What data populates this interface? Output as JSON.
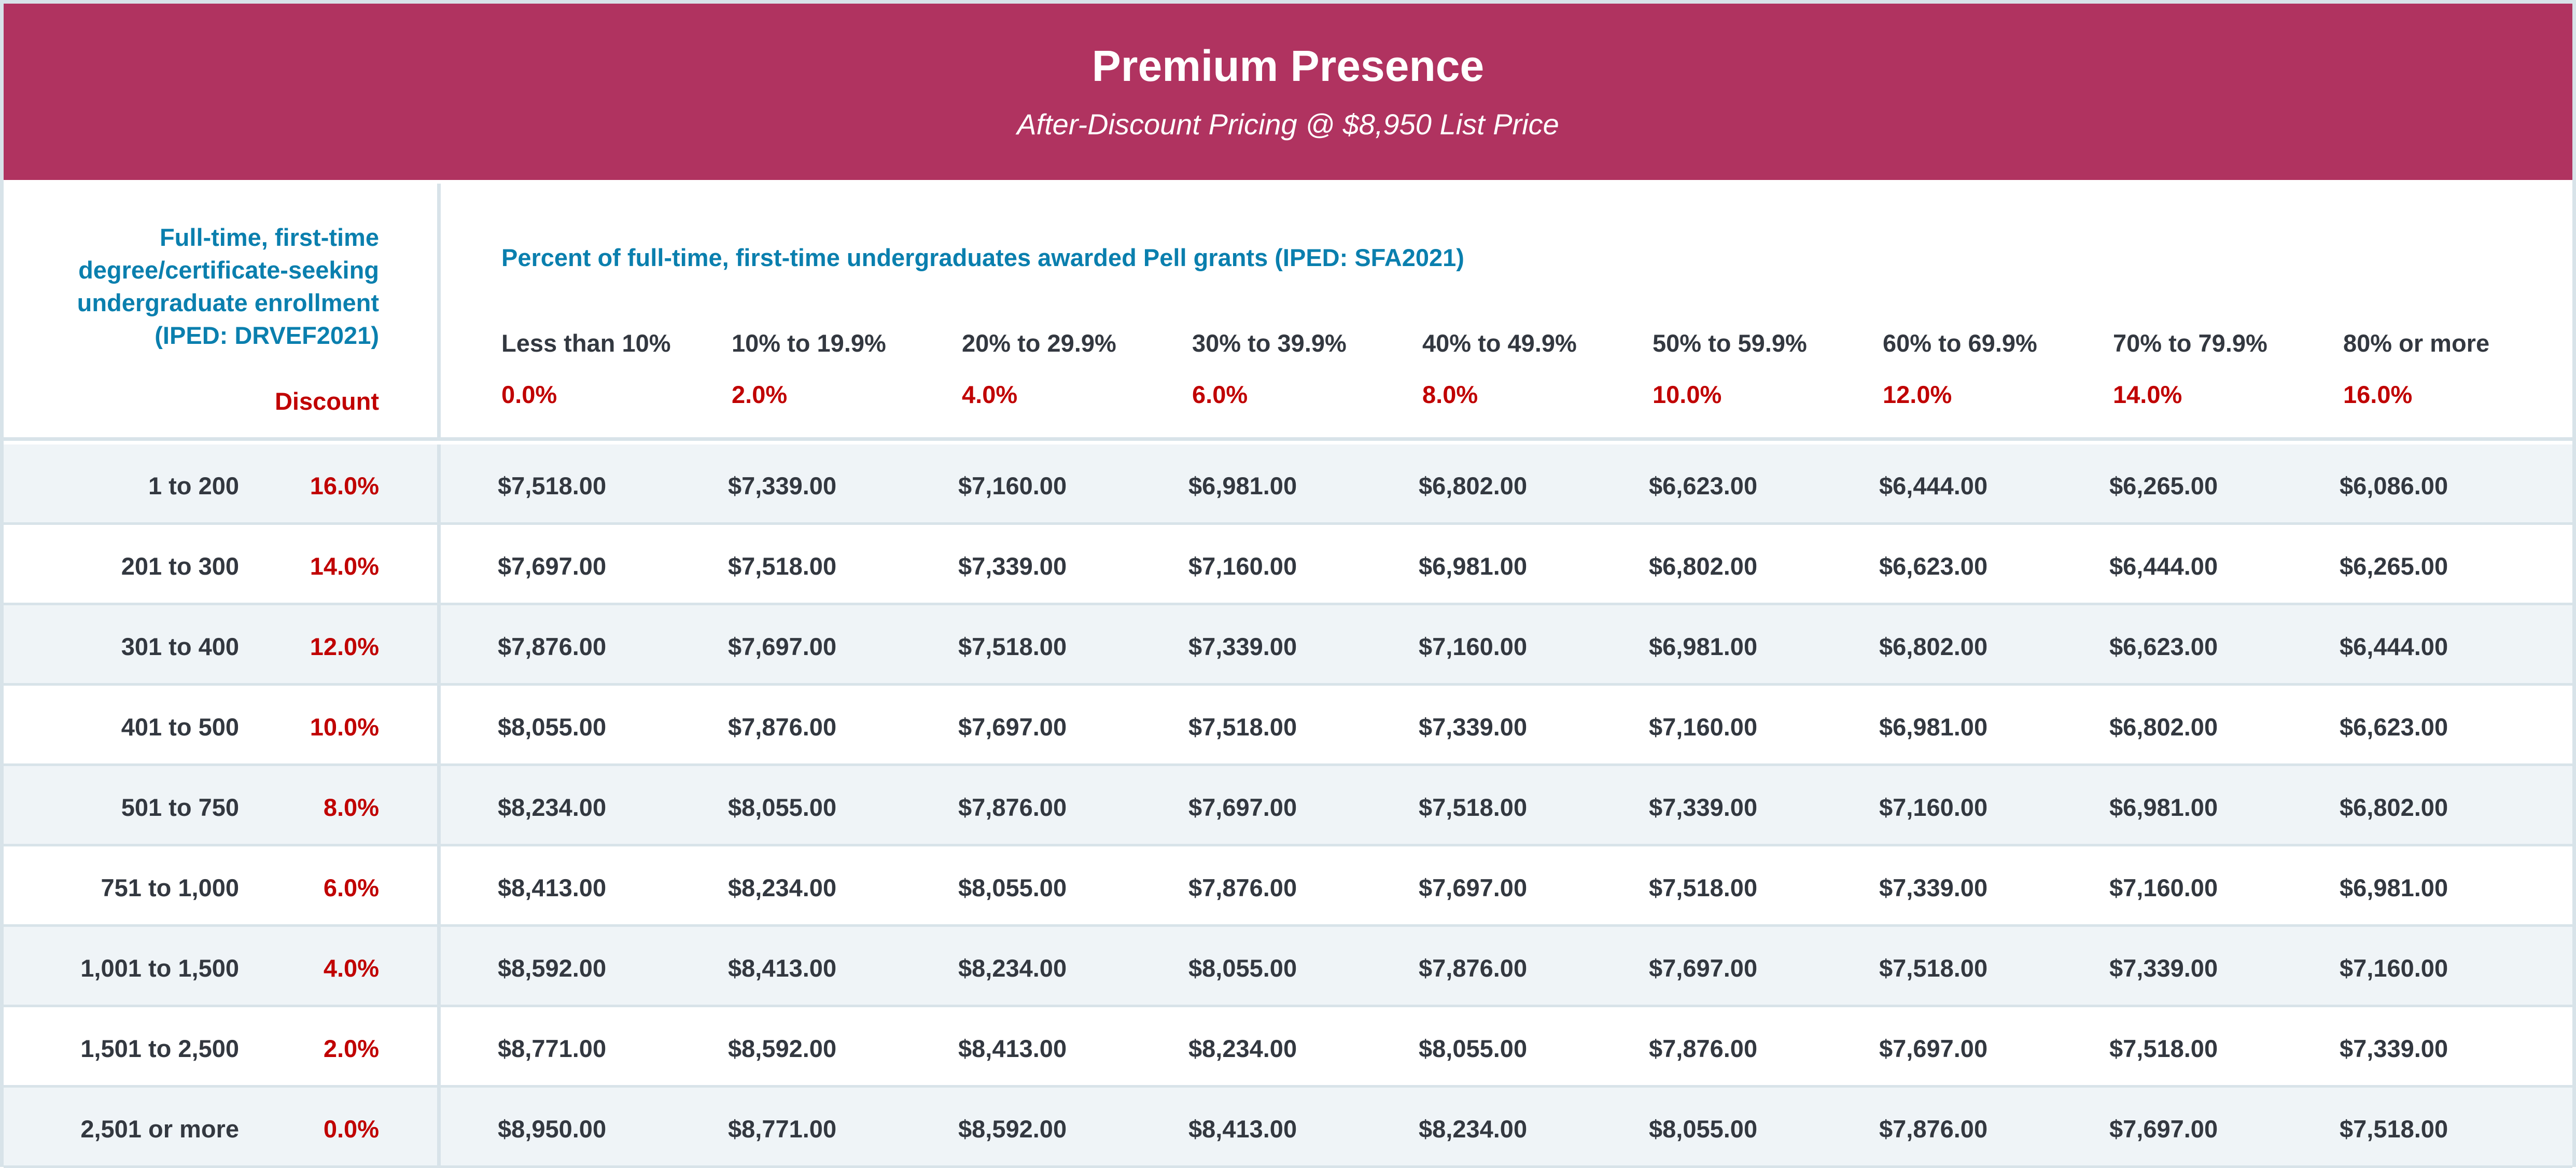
{
  "header": {
    "title": "Premium Presence",
    "subtitle": "After-Discount Pricing @ $8,950 List Price"
  },
  "colors": {
    "header_bg": "#b03360",
    "accent_blue": "#0a7fae",
    "discount_red": "#c00000",
    "row_alt": "#eff4f7"
  },
  "table": {
    "row_header_title_lines": [
      "Full-time, first-time",
      "degree/certificate-seeking",
      "undergraduate enrollment",
      "(IPED: DRVEF2021)"
    ],
    "discount_label": "Discount",
    "column_group_title": "Percent of full-time, first-time undergraduates awarded Pell grants (IPED: SFA2021)",
    "columns": [
      {
        "label": "Less than 10%",
        "discount": "0.0%"
      },
      {
        "label": "10% to 19.9%",
        "discount": "2.0%"
      },
      {
        "label": "20% to 29.9%",
        "discount": "4.0%"
      },
      {
        "label": "30% to 39.9%",
        "discount": "6.0%"
      },
      {
        "label": "40% to 49.9%",
        "discount": "8.0%"
      },
      {
        "label": "50% to 59.9%",
        "discount": "10.0%"
      },
      {
        "label": "60% to 69.9%",
        "discount": "12.0%"
      },
      {
        "label": "70% to 79.9%",
        "discount": "14.0%"
      },
      {
        "label": "80% or more",
        "discount": "16.0%"
      }
    ],
    "rows": [
      {
        "range": "1 to 200",
        "discount": "16.0%",
        "values": [
          "$7,518.00",
          "$7,339.00",
          "$7,160.00",
          "$6,981.00",
          "$6,802.00",
          "$6,623.00",
          "$6,444.00",
          "$6,265.00",
          "$6,086.00"
        ]
      },
      {
        "range": "201 to 300",
        "discount": "14.0%",
        "values": [
          "$7,697.00",
          "$7,518.00",
          "$7,339.00",
          "$7,160.00",
          "$6,981.00",
          "$6,802.00",
          "$6,623.00",
          "$6,444.00",
          "$6,265.00"
        ]
      },
      {
        "range": "301 to 400",
        "discount": "12.0%",
        "values": [
          "$7,876.00",
          "$7,697.00",
          "$7,518.00",
          "$7,339.00",
          "$7,160.00",
          "$6,981.00",
          "$6,802.00",
          "$6,623.00",
          "$6,444.00"
        ]
      },
      {
        "range": "401 to 500",
        "discount": "10.0%",
        "values": [
          "$8,055.00",
          "$7,876.00",
          "$7,697.00",
          "$7,518.00",
          "$7,339.00",
          "$7,160.00",
          "$6,981.00",
          "$6,802.00",
          "$6,623.00"
        ]
      },
      {
        "range": "501 to 750",
        "discount": "8.0%",
        "values": [
          "$8,234.00",
          "$8,055.00",
          "$7,876.00",
          "$7,697.00",
          "$7,518.00",
          "$7,339.00",
          "$7,160.00",
          "$6,981.00",
          "$6,802.00"
        ]
      },
      {
        "range": "751 to 1,000",
        "discount": "6.0%",
        "values": [
          "$8,413.00",
          "$8,234.00",
          "$8,055.00",
          "$7,876.00",
          "$7,697.00",
          "$7,518.00",
          "$7,339.00",
          "$7,160.00",
          "$6,981.00"
        ]
      },
      {
        "range": "1,001 to 1,500",
        "discount": "4.0%",
        "values": [
          "$8,592.00",
          "$8,413.00",
          "$8,234.00",
          "$8,055.00",
          "$7,876.00",
          "$7,697.00",
          "$7,518.00",
          "$7,339.00",
          "$7,160.00"
        ]
      },
      {
        "range": "1,501 to 2,500",
        "discount": "2.0%",
        "values": [
          "$8,771.00",
          "$8,592.00",
          "$8,413.00",
          "$8,234.00",
          "$8,055.00",
          "$7,876.00",
          "$7,697.00",
          "$7,518.00",
          "$7,339.00"
        ]
      },
      {
        "range": "2,501 or more",
        "discount": "0.0%",
        "values": [
          "$8,950.00",
          "$8,771.00",
          "$8,592.00",
          "$8,413.00",
          "$8,234.00",
          "$8,055.00",
          "$7,876.00",
          "$7,697.00",
          "$7,518.00"
        ]
      }
    ]
  }
}
